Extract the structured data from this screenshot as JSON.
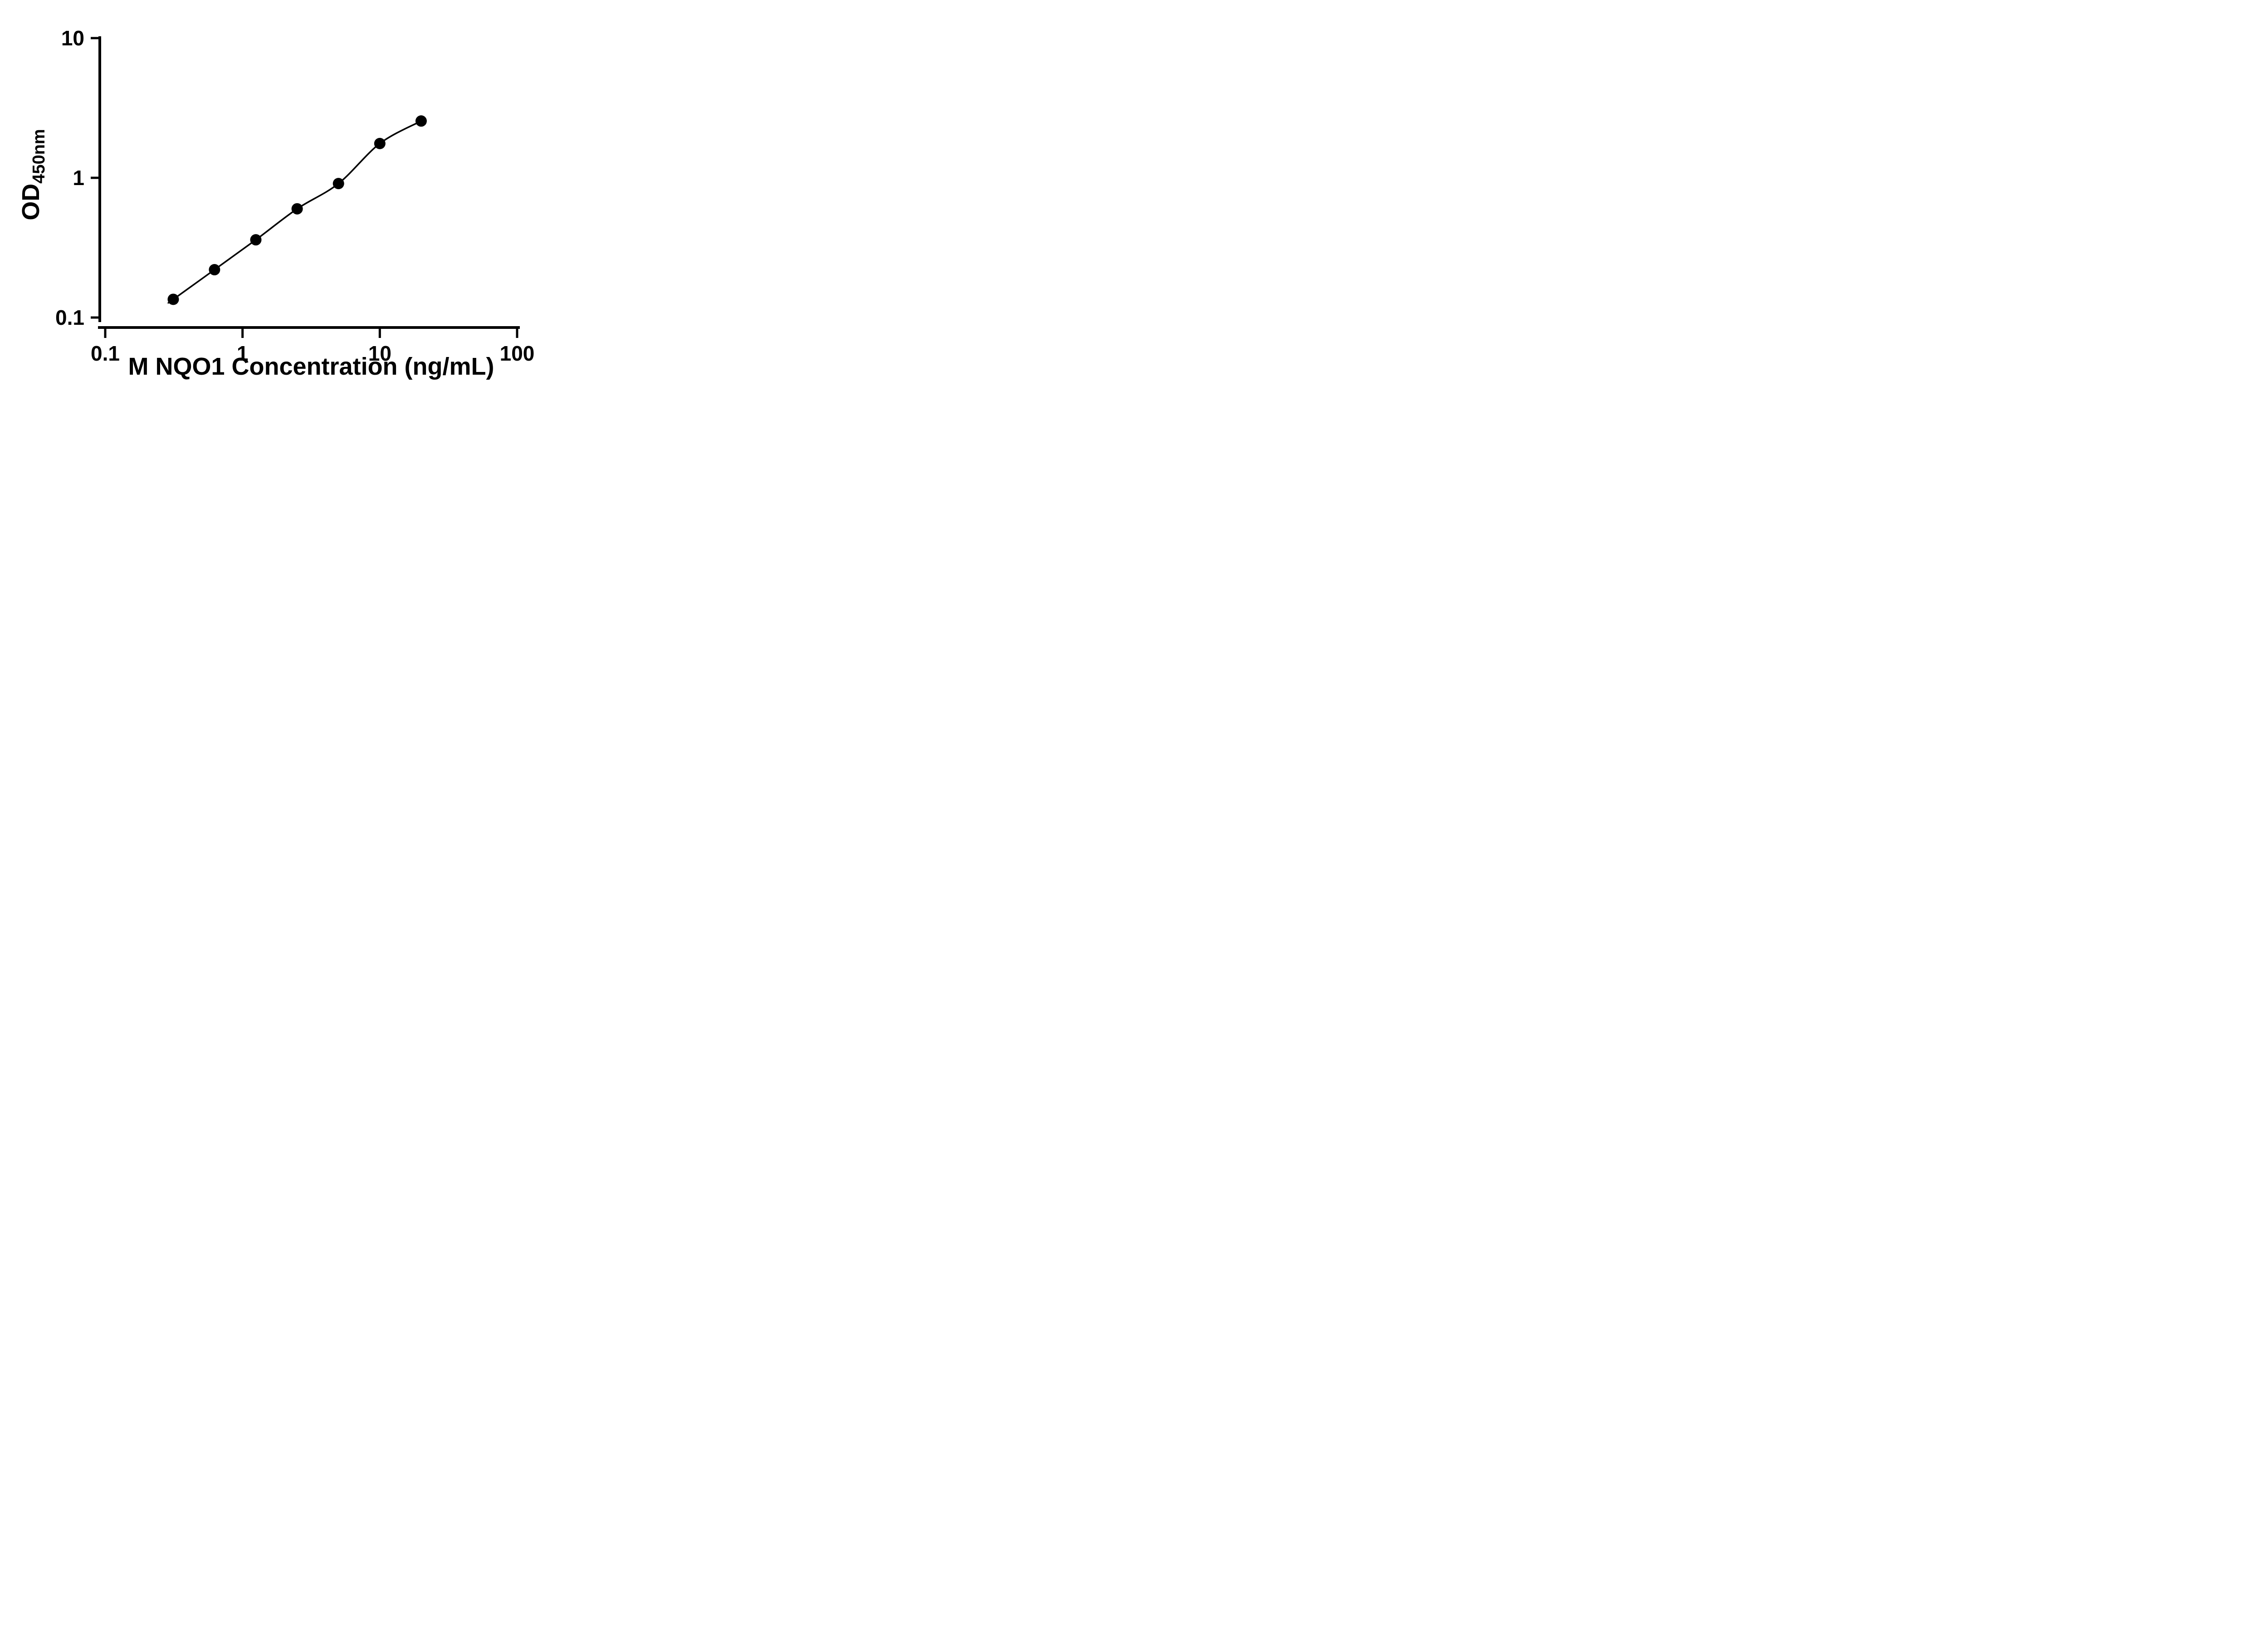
{
  "page": {
    "background_color": "#ffffff",
    "foreground_color": "#000000"
  },
  "chart_data": {
    "type": "scatter",
    "subtype": "standard-curve-with-fit",
    "title": "",
    "xlabel": "M NQO1 Concentration (ng/mL)",
    "ylabel": "OD",
    "ylabel_subscript": "450nm",
    "x_scale": "log",
    "y_scale": "log",
    "xlim": [
      0.1,
      100
    ],
    "ylim": [
      0.1,
      10
    ],
    "x_ticks": [
      0.1,
      1,
      10,
      100
    ],
    "x_tick_labels": [
      "0.1",
      "1",
      "10",
      "100"
    ],
    "y_ticks": [
      0.1,
      1,
      10
    ],
    "y_tick_labels": [
      "0.1",
      "1",
      "10"
    ],
    "grid": false,
    "legend": null,
    "marker_color": "#000000",
    "line_color": "#000000",
    "marker_shape": "filled-circle",
    "points": [
      {
        "x": 0.313,
        "y": 0.135
      },
      {
        "x": 0.625,
        "y": 0.22
      },
      {
        "x": 1.25,
        "y": 0.36
      },
      {
        "x": 2.5,
        "y": 0.6
      },
      {
        "x": 5,
        "y": 0.91
      },
      {
        "x": 10,
        "y": 1.76
      },
      {
        "x": 20,
        "y": 2.55
      }
    ],
    "fit_line": true
  }
}
